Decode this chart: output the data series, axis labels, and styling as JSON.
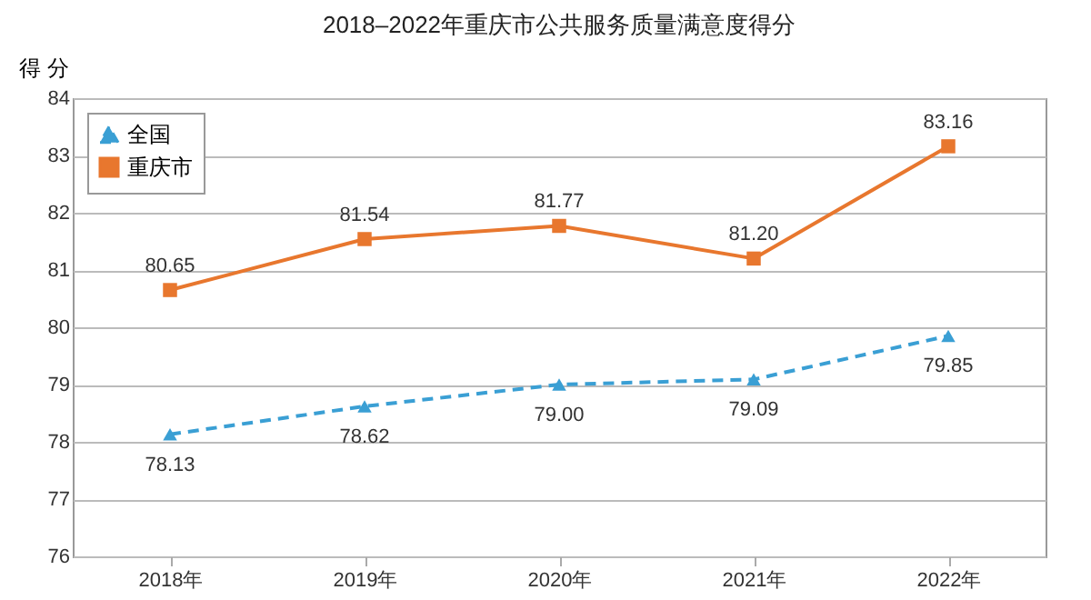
{
  "chart_data": {
    "type": "line",
    "title": "2018–2022年重庆市公共服务质量满意度得分",
    "ylabel": "得 分",
    "categories": [
      "2018年",
      "2019年",
      "2020年",
      "2021年",
      "2022年"
    ],
    "series": [
      {
        "name": "全国",
        "color": "#3a9fd4",
        "values": [
          78.13,
          78.62,
          79.0,
          79.09,
          79.85
        ],
        "value_labels": [
          "78.13",
          "78.62",
          "79.00",
          "79.09",
          "79.85"
        ],
        "marker": "triangle",
        "line_style": "dashed"
      },
      {
        "name": "重庆市",
        "color": "#e8772e",
        "values": [
          80.65,
          81.54,
          81.77,
          81.2,
          83.16
        ],
        "value_labels": [
          "80.65",
          "81.54",
          "81.77",
          "81.20",
          "83.16"
        ],
        "marker": "square",
        "line_style": "solid"
      }
    ],
    "ylim": [
      76,
      84
    ],
    "yticks": [
      76,
      77,
      78,
      79,
      80,
      81,
      82,
      83,
      84
    ],
    "grid": "y",
    "legend": "top left"
  }
}
